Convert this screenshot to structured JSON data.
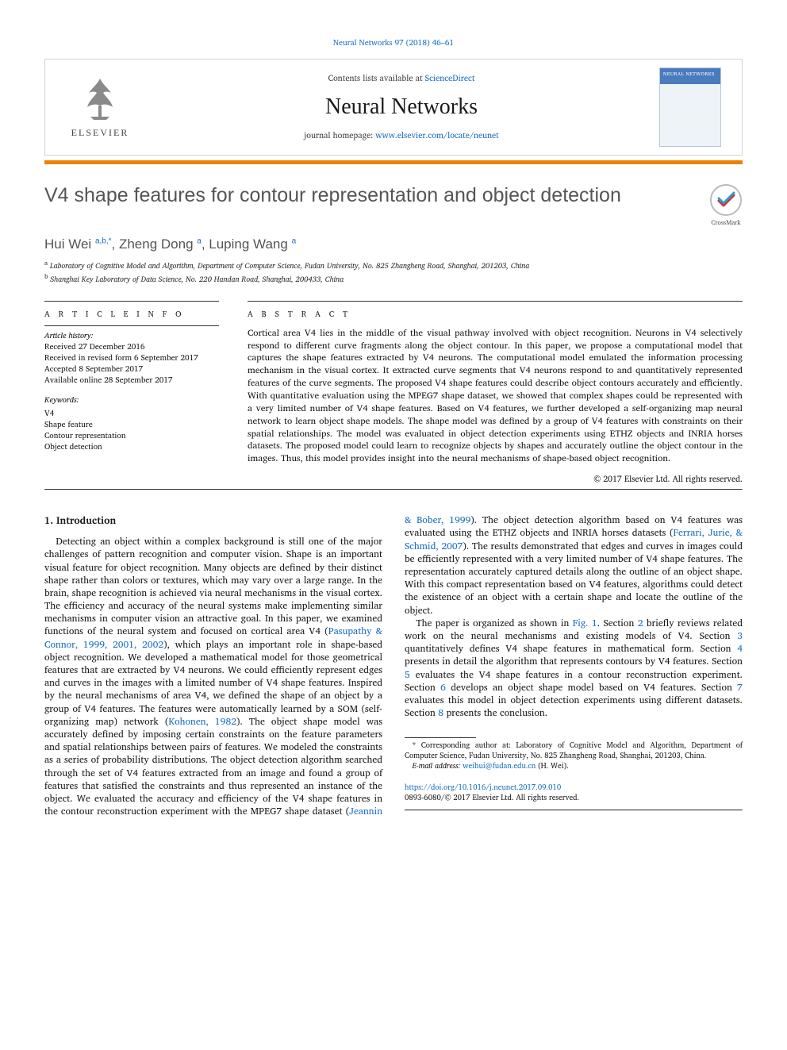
{
  "top_citation": {
    "prefix": "",
    "link_text": "Neural Networks 97 (2018) 46–61"
  },
  "masthead": {
    "contents_prefix": "Contents lists available at ",
    "contents_link": "ScienceDirect",
    "journal_name": "Neural Networks",
    "homepage_prefix": "journal homepage: ",
    "homepage_link": "www.elsevier.com/locate/neunet",
    "elsevier_word": "ELSEVIER",
    "cover_label": "NEURAL NETWORKS"
  },
  "colors": {
    "orange_bar": "#e98300",
    "link": "#1b6ec2",
    "title_gray": "#555555"
  },
  "article": {
    "title": "V4 shape features for contour representation and object detection",
    "crossmark_label": "CrossMark",
    "authors_html": "Hui Wei <sup>a,b,*</sup>, Zheng Dong <sup>a</sup>, Luping Wang <sup>a</sup>",
    "affiliations": [
      {
        "marker": "a",
        "text": "Laboratory of Cognitive Model and Algorithm, Department of Computer Science, Fudan University, No. 825 Zhangheng Road, Shanghai, 201203, China"
      },
      {
        "marker": "b",
        "text": "Shanghai Key Laboratory of Data Science, No. 220 Handan Road, Shanghai, 200433, China"
      }
    ]
  },
  "info": {
    "heading": "a r t i c l e   i n f o",
    "history_label": "Article history:",
    "history": [
      "Received 27 December 2016",
      "Received in revised form 6 September 2017",
      "Accepted 8 September 2017",
      "Available online 28 September 2017"
    ],
    "keywords_label": "Keywords:",
    "keywords": [
      "V4",
      "Shape feature",
      "Contour representation",
      "Object detection"
    ]
  },
  "abstract": {
    "heading": "a b s t r a c t",
    "text": "Cortical area V4 lies in the middle of the visual pathway involved with object recognition. Neurons in V4 selectively respond to different curve fragments along the object contour. In this paper, we propose a computational model that captures the shape features extracted by V4 neurons. The computational model emulated the information processing mechanism in the visual cortex. It extracted curve segments that V4 neurons respond to and quantitatively represented features of the curve segments. The proposed V4 shape features could describe object contours accurately and efficiently. With quantitative evaluation using the MPEG7 shape dataset, we showed that complex shapes could be represented with a very limited number of V4 shape features. Based on V4 features, we further developed a self-organizing map neural network to learn object shape models. The shape model was defined by a group of V4 features with constraints on their spatial relationships. The model was evaluated in object detection experiments using ETHZ objects and INRIA horses datasets. The proposed model could learn to recognize objects by shapes and accurately outline the object contour in the images. Thus, this model provides insight into the neural mechanisms of shape-based object recognition.",
    "copyright": "© 2017 Elsevier Ltd. All rights reserved."
  },
  "section1": {
    "heading": "1. Introduction",
    "p1_pre": "Detecting an object within a complex background is still one of the major challenges of pattern recognition and computer vision. Shape is an important visual feature for object recognition. Many objects are defined by their distinct shape rather than colors or textures, which may vary over a large range. In the brain, shape recognition is achieved via neural mechanisms in the visual cortex. The efficiency and accuracy of the neural systems make implementing similar mechanisms in computer vision an attractive goal. In this paper, we examined functions of the neural system and focused on cortical area V4  (",
    "p1_link1": "Pasupathy & Connor, 1999, 2001, 2002",
    "p1_mid1": "), which plays an important role in shape-based object recognition. We developed a mathematical model for those geometrical features that are extracted by V4 neurons. We could efficiently represent edges and curves in the images with a limited number of V4 shape features. Inspired by the neural mechanisms of area V4, we defined the shape of an object by a group of V4 features. The features were automatically learned by a SOM (self-organizing map) network  (",
    "p1_link2": "Kohonen, 1982",
    "p1_mid2": "). The object shape model was accurately defined by imposing certain constraints on the feature parameters and spatial relationships between pairs of features. We modeled the constraints as a series of probability distributions. The object detection algorithm searched through the set of V4 features extracted from an image and found a group of features that satisfied the constraints and thus represented an instance of the object. We evaluated the accuracy and efficiency of the V4 shape features in the contour reconstruction experiment with the MPEG7 shape dataset  (",
    "p1_link3": "Jeannin & Bober, 1999",
    "p1_mid3": "). The object detection algorithm based on V4 features was evaluated using the ETHZ objects and INRIA horses datasets  (",
    "p1_link4": "Ferrari, Jurie, & Schmid, 2007",
    "p1_post": "). The results demonstrated that edges and curves in images could be efficiently represented with a very limited number of V4 shape features. The representation accurately captured details along the outline of an object shape. With this compact representation based on V4 features, algorithms could detect the existence of an object with a certain shape and locate the outline of the object.",
    "p2_pre": "The paper is organized as shown in ",
    "p2_fig": "Fig. 1",
    "p2_mid1": ". Section ",
    "p2_s2": "2",
    "p2_mid2": " briefly reviews related work on the neural mechanisms and existing models of V4. Section ",
    "p2_s3": "3",
    "p2_mid3": " quantitatively defines V4 shape features in mathematical form. Section ",
    "p2_s4": "4",
    "p2_mid4": " presents in detail the algorithm that represents contours by V4 features. Section ",
    "p2_s5": "5",
    "p2_mid5": " evaluates the V4 shape features in a contour reconstruction experiment. Section ",
    "p2_s6": "6",
    "p2_mid6": " develops an object shape model based on V4 features. Section ",
    "p2_s7": "7",
    "p2_mid7": " evaluates this model in object detection experiments using different datasets. Section ",
    "p2_s8": "8",
    "p2_post": " presents the conclusion."
  },
  "footnotes": {
    "corr_marker": "*",
    "corr_text": " Corresponding author at: Laboratory of Cognitive Model and Algorithm, Department of Computer Science, Fudan University, No. 825 Zhangheng Road, Shanghai, 201203, China.",
    "email_label": "E-mail address: ",
    "email": "weihui@fudan.edu.cn",
    "email_suffix": " (H. Wei)."
  },
  "bottom": {
    "doi": "https://doi.org/10.1016/j.neunet.2017.09.010",
    "issn_line": "0893-6080/© 2017 Elsevier Ltd. All rights reserved."
  }
}
